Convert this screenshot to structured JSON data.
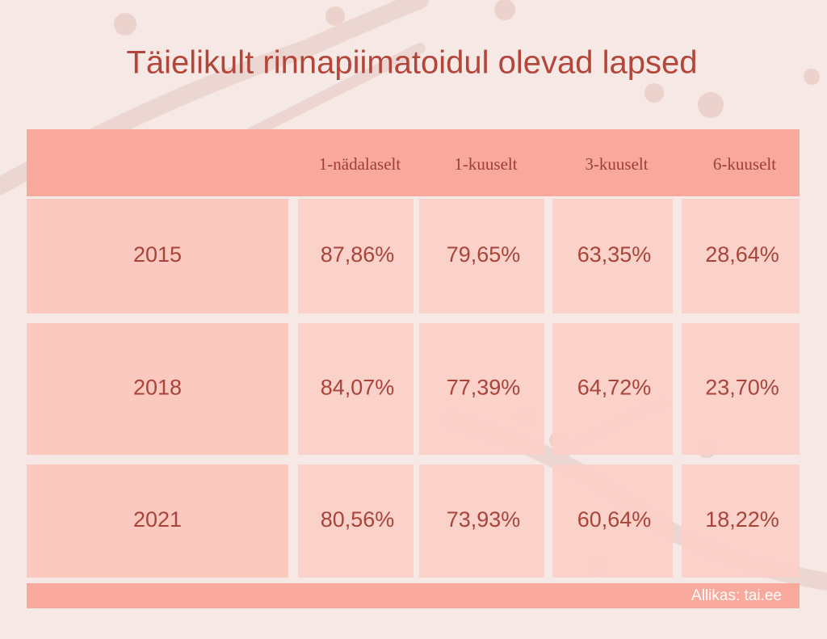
{
  "header": {
    "title": "Täielikult rinnapiimatoidul olevad lapsed"
  },
  "table": {
    "columns": [
      "1-nädalaselt",
      "1-kuuselt",
      "3-kuuselt",
      "6-kuuselt"
    ],
    "rows": [
      {
        "label": "2015",
        "cells": [
          "87,86%",
          "79,65%",
          "63,35%",
          "28,64%"
        ]
      },
      {
        "label": "2018",
        "cells": [
          "84,07%",
          "77,39%",
          "64,72%",
          "23,70%"
        ]
      },
      {
        "label": "2021",
        "cells": [
          "80,56%",
          "73,93%",
          "60,64%",
          "18,22%"
        ]
      }
    ]
  },
  "footer": {
    "source": "Allikas: tai.ee"
  }
}
